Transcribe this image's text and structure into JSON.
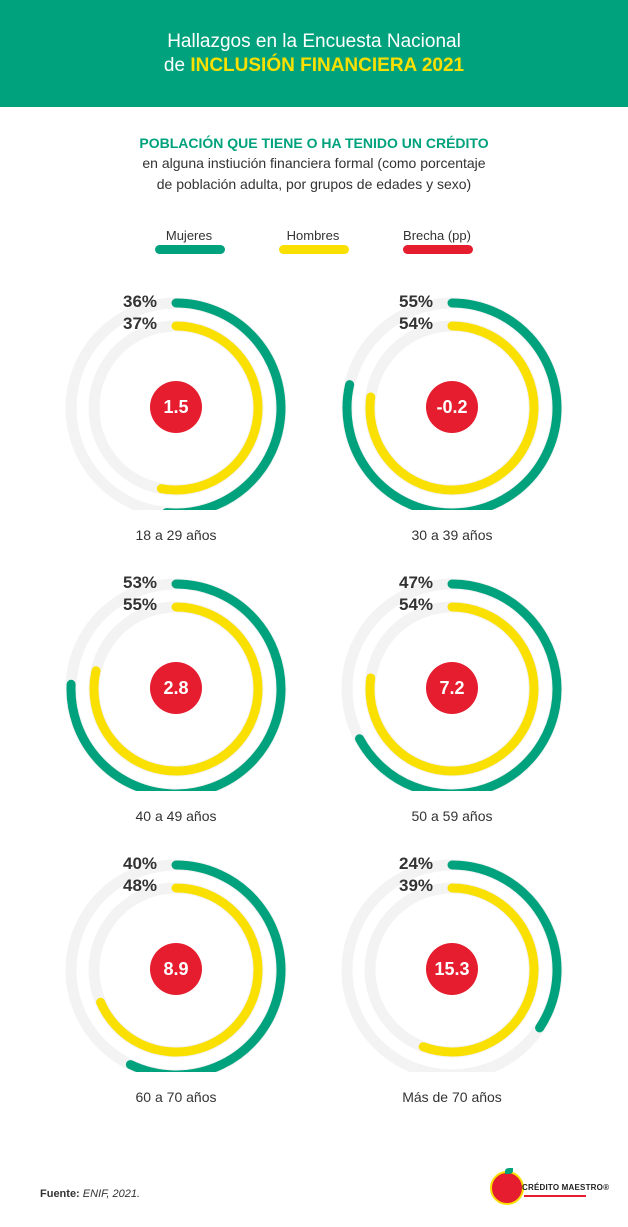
{
  "header": {
    "line1": "Hallazgos en la Encuesta Nacional",
    "line2_prefix": "de ",
    "line2_highlight": "INCLUSIÓN FINANCIERA 2021"
  },
  "subtitle": {
    "line1": "POBLACIÓN QUE TIENE O HA TENIDO UN CRÉDITO",
    "line2": "en alguna instiución financiera formal (como porcentaje",
    "line3": "de población adulta, por grupos de edades y sexo)"
  },
  "legend": [
    {
      "label": "Mujeres",
      "color": "#00a27d"
    },
    {
      "label": "Hombres",
      "color": "#f9e000"
    },
    {
      "label": "Brecha (pp)",
      "color": "#e51d2e"
    }
  ],
  "chart_data": {
    "type": "radial-bar",
    "series": [
      {
        "name": "Mujeres",
        "color": "#00a27d",
        "values": [
          36,
          55,
          53,
          47,
          40,
          24
        ]
      },
      {
        "name": "Hombres",
        "color": "#f9e000",
        "values": [
          37,
          54,
          55,
          54,
          48,
          39
        ]
      },
      {
        "name": "Brecha (pp)",
        "color": "#e51d2e",
        "values": [
          1.5,
          -0.2,
          2.8,
          7.2,
          8.9,
          15.3
        ]
      }
    ],
    "groups": [
      {
        "label": "18 a 29 años",
        "mujeres": 36,
        "hombres": 37,
        "mujeres_label": "36%",
        "hombres_label": "37%",
        "brecha_label": "1.5"
      },
      {
        "label": "30 a 39 años",
        "mujeres": 55,
        "hombres": 54,
        "mujeres_label": "55%",
        "hombres_label": "54%",
        "brecha_label": "-0.2"
      },
      {
        "label": "40 a 49 años",
        "mujeres": 53,
        "hombres": 55,
        "mujeres_label": "53%",
        "hombres_label": "55%",
        "brecha_label": "2.8"
      },
      {
        "label": "50 a 59 años",
        "mujeres": 47,
        "hombres": 54,
        "mujeres_label": "47%",
        "hombres_label": "54%",
        "brecha_label": "7.2"
      },
      {
        "label": "60 a 70 años",
        "mujeres": 40,
        "hombres": 48,
        "mujeres_label": "40%",
        "hombres_label": "48%",
        "brecha_label": "8.9"
      },
      {
        "label": "Más de 70 años",
        "mujeres": 24,
        "hombres": 39,
        "mujeres_label": "24%",
        "hombres_label": "39%",
        "brecha_label": "15.3"
      }
    ],
    "scale_max": 70,
    "track_color": "#f3f3f3"
  },
  "source": {
    "label": "Fuente:",
    "text": "ENIF, 2021."
  },
  "logo": {
    "brand": "CRÉDITO MAESTRO®"
  }
}
